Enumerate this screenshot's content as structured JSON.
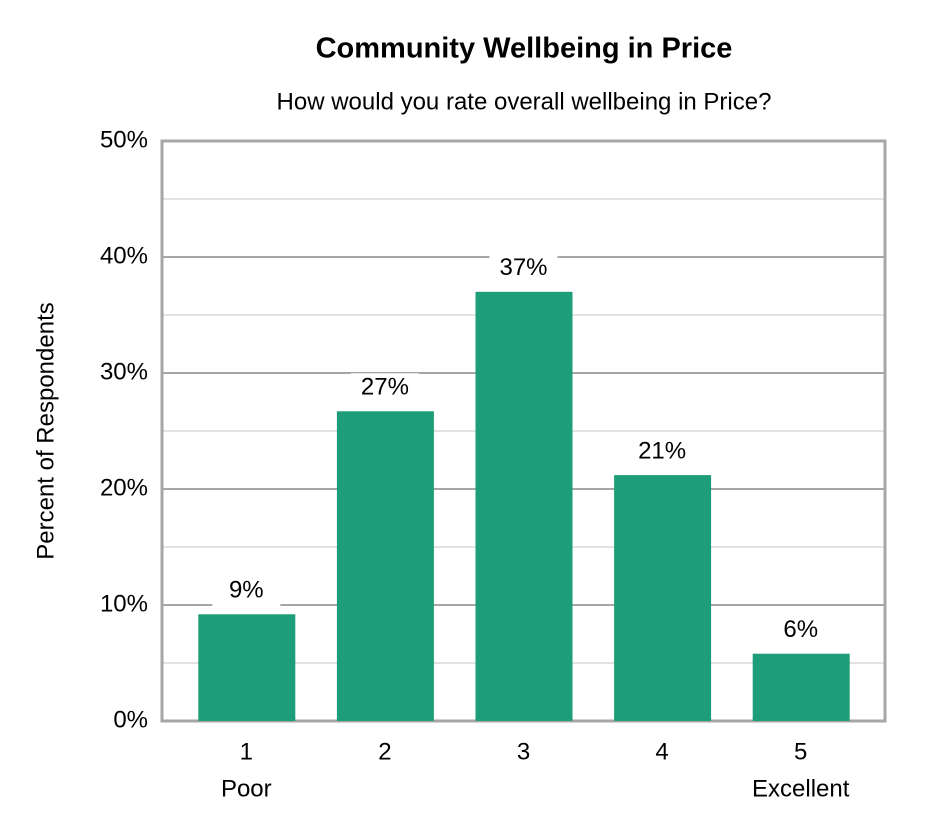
{
  "chart_data": {
    "type": "bar",
    "title": "Community Wellbeing in Price",
    "subtitle": "How would you rate overall wellbeing in Price?",
    "y_label": "Percent of Respondents",
    "categories": [
      "1",
      "2",
      "3",
      "4",
      "5"
    ],
    "category_sublabels": [
      "Poor",
      null,
      null,
      null,
      "Excellent"
    ],
    "values": [
      9.2,
      26.7,
      37.0,
      21.2,
      5.8
    ],
    "value_labels": [
      "9%",
      "27%",
      "37%",
      "21%",
      "6%"
    ],
    "color": "#1e9e78",
    "ylim": [
      0,
      50
    ],
    "yticks": [
      {
        "value": 0,
        "label": "0%"
      },
      {
        "value": 10,
        "label": "10%"
      },
      {
        "value": 20,
        "label": "20%"
      },
      {
        "value": 30,
        "label": "30%"
      },
      {
        "value": 40,
        "label": "40%"
      },
      {
        "value": 50,
        "label": "50%"
      }
    ],
    "minor_yticks": [
      5,
      15,
      25,
      35,
      45
    ],
    "grid": true
  }
}
